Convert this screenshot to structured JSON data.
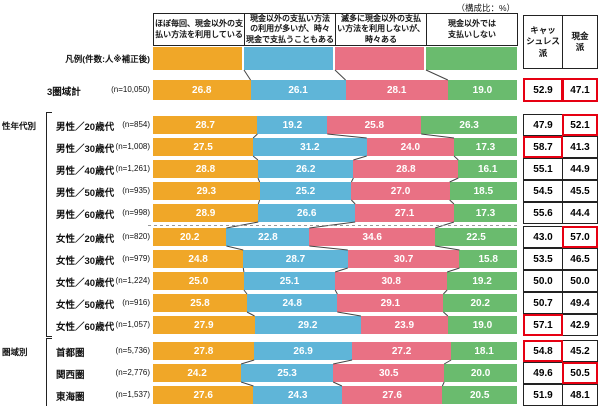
{
  "chart_data": {
    "type": "bar",
    "stacked": true,
    "orientation": "horizontal",
    "unit": "（構成比：%）",
    "legend_row_label": "凡例(件数:人※補正後)",
    "highlight_color": "#e60012",
    "segments": [
      {
        "key": "almost-always-cashless",
        "label": "ほぼ毎回、現金以外の支払い方法を利用している",
        "lines": [
          "ほぼ毎回、現金以外の支",
          "払い方法を利用している"
        ],
        "color": "#f0a728"
      },
      {
        "key": "mostly-cashless-sometimes-cash",
        "label": "現金以外の支払い方法の利用が多いが、時々現金で支払うこともある",
        "lines": [
          "現金以外の支払い方法",
          "の利用が多いが、時々",
          "現金で支払うこともある"
        ],
        "color": "#5fb5d8"
      },
      {
        "key": "rarely-cashless",
        "label": "滅多に現金以外の支払い方法を利用しないが、時々ある",
        "lines": [
          "滅多に現金以外の支払",
          "い方法を利用しないが、",
          "時々ある"
        ],
        "color": "#e97184"
      },
      {
        "key": "never-cashless",
        "label": "現金以外では支払いしない",
        "lines": [
          "現金以外では",
          "支払いしない"
        ],
        "color": "#6abb6e"
      }
    ],
    "summary_columns": [
      {
        "key": "cashless",
        "label": "キャッシュレス派",
        "lines": [
          "キャッ",
          "シュレス",
          "派"
        ]
      },
      {
        "key": "cash",
        "label": "現金派",
        "lines": [
          "現金",
          "派"
        ]
      }
    ],
    "groups": [
      {
        "label": "性年代別",
        "from": 1,
        "to": 10
      },
      {
        "label": "圏域別",
        "from": 11,
        "to": 13
      }
    ],
    "separator_after_row": 5,
    "rows": [
      {
        "group": "",
        "label": "3圏域計",
        "n": "(n=10,050)",
        "values": [
          26.8,
          26.1,
          28.1,
          19.0
        ],
        "cashless": "52.9",
        "cash": "47.1",
        "cashless_box": true,
        "cash_box": true
      },
      {
        "group": "性年代別",
        "label": "男性／20歳代",
        "n": "(n=854)",
        "values": [
          28.7,
          19.2,
          25.8,
          26.3
        ],
        "cashless": "47.9",
        "cash": "52.1",
        "cashless_box": false,
        "cash_box": true
      },
      {
        "group": "性年代別",
        "label": "男性／30歳代",
        "n": "(n=1,008)",
        "values": [
          27.5,
          31.2,
          24.0,
          17.3
        ],
        "cashless": "58.7",
        "cash": "41.3",
        "cashless_box": true,
        "cash_box": false
      },
      {
        "group": "性年代別",
        "label": "男性／40歳代",
        "n": "(n=1,261)",
        "values": [
          28.8,
          26.2,
          28.8,
          16.1
        ],
        "cashless": "55.1",
        "cash": "44.9",
        "cashless_box": false,
        "cash_box": false
      },
      {
        "group": "性年代別",
        "label": "男性／50歳代",
        "n": "(n=935)",
        "values": [
          29.3,
          25.2,
          27.0,
          18.5
        ],
        "cashless": "54.5",
        "cash": "45.5",
        "cashless_box": false,
        "cash_box": false
      },
      {
        "group": "性年代別",
        "label": "男性／60歳代",
        "n": "(n=998)",
        "values": [
          28.9,
          26.6,
          27.1,
          17.3
        ],
        "cashless": "55.6",
        "cash": "44.4",
        "cashless_box": false,
        "cash_box": false
      },
      {
        "group": "性年代別",
        "label": "女性／20歳代",
        "n": "(n=820)",
        "values": [
          20.2,
          22.8,
          34.6,
          22.5
        ],
        "cashless": "43.0",
        "cash": "57.0",
        "cashless_box": false,
        "cash_box": true
      },
      {
        "group": "性年代別",
        "label": "女性／30歳代",
        "n": "(n=979)",
        "values": [
          24.8,
          28.7,
          30.7,
          15.8
        ],
        "cashless": "53.5",
        "cash": "46.5",
        "cashless_box": false,
        "cash_box": false
      },
      {
        "group": "性年代別",
        "label": "女性／40歳代",
        "n": "(n=1,224)",
        "values": [
          25.0,
          25.1,
          30.8,
          19.2
        ],
        "cashless": "50.0",
        "cash": "50.0",
        "cashless_box": false,
        "cash_box": false
      },
      {
        "group": "性年代別",
        "label": "女性／50歳代",
        "n": "(n=916)",
        "values": [
          25.8,
          24.8,
          29.1,
          20.2
        ],
        "cashless": "50.7",
        "cash": "49.4",
        "cashless_box": false,
        "cash_box": false
      },
      {
        "group": "性年代別",
        "label": "女性／60歳代",
        "n": "(n=1,057)",
        "values": [
          27.9,
          29.2,
          23.9,
          19.0
        ],
        "cashless": "57.1",
        "cash": "42.9",
        "cashless_box": true,
        "cash_box": false
      },
      {
        "group": "圏域別",
        "label": "首都圏",
        "n": "(n=5,736)",
        "values": [
          27.8,
          26.9,
          27.2,
          18.1
        ],
        "cashless": "54.8",
        "cash": "45.2",
        "cashless_box": true,
        "cash_box": false
      },
      {
        "group": "圏域別",
        "label": "関西圏",
        "n": "(n=2,776)",
        "values": [
          24.2,
          25.3,
          30.5,
          20.0
        ],
        "cashless": "49.6",
        "cash": "50.5",
        "cashless_box": false,
        "cash_box": true
      },
      {
        "group": "圏域別",
        "label": "東海圏",
        "n": "(n=1,537)",
        "values": [
          27.6,
          24.3,
          27.6,
          20.5
        ],
        "cashless": "51.9",
        "cash": "48.1",
        "cashless_box": false,
        "cash_box": false
      }
    ]
  }
}
